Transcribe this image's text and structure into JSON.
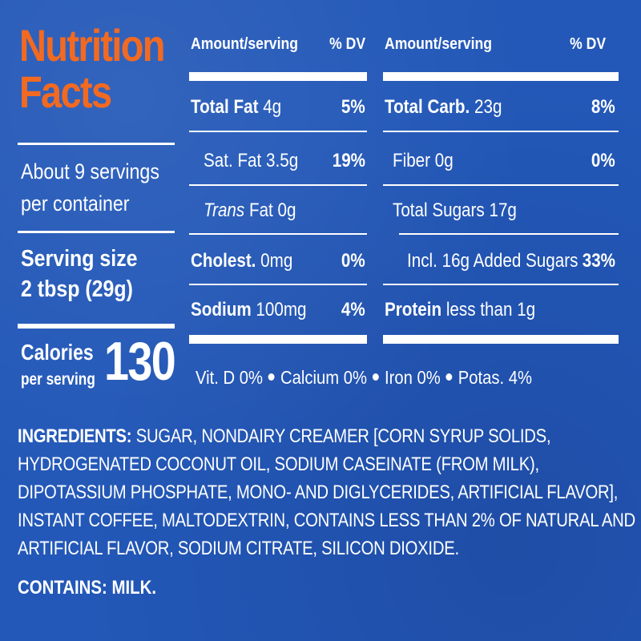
{
  "title": {
    "line1": "Nutrition",
    "line2": "Facts"
  },
  "servings": {
    "line1": "About 9 servings",
    "line2": "per container"
  },
  "serving_size": {
    "label": "Serving size",
    "value": "2 tbsp (29g)"
  },
  "calories": {
    "label": "Calories",
    "sub": "per serving",
    "value": "130"
  },
  "table": {
    "left": {
      "header_amount": "Amount/serving",
      "header_dv": "% DV",
      "total_fat": {
        "name": "Total Fat",
        "amount": "4g",
        "dv": "5%"
      },
      "sat_fat": {
        "text": "Sat. Fat 3.5g",
        "dv": "19%"
      },
      "trans_fat": {
        "italic": "Trans",
        "rest": "Fat 0g"
      },
      "cholest": {
        "name": "Cholest.",
        "amount": "0mg",
        "dv": "0%"
      },
      "sodium": {
        "name": "Sodium",
        "amount": "100mg",
        "dv": "4%"
      }
    },
    "right": {
      "header_amount": "Amount/serving",
      "header_dv": "% DV",
      "total_carb": {
        "name": "Total Carb.",
        "amount": "23g",
        "dv": "8%"
      },
      "fiber": {
        "text": "Fiber 0g",
        "dv": "0%"
      },
      "total_sugars": {
        "text": "Total Sugars 17g"
      },
      "added_sugars": {
        "text": "Incl. 16g Added Sugars",
        "dv": "33%"
      },
      "protein": {
        "name": "Protein",
        "amount": "less than 1g"
      }
    }
  },
  "vitamins": [
    "Vit. D 0%",
    "Calcium 0%",
    "Iron 0%",
    "Potas. 4%"
  ],
  "ingredients": {
    "label": "INGREDIENTS:",
    "line1": "SUGAR, NONDAIRY CREAMER [CORN SYRUP SOLIDS,",
    "line2": "HYDROGENATED COCONUT OIL, SODIUM CASEINATE (FROM MILK),",
    "line3": "DIPOTASSIUM PHOSPHATE, MONO- AND DIGLYCERIDES, ARTIFICIAL FLAVOR],",
    "line4": "INSTANT COFFEE, MALTODEXTRIN, CONTAINS LESS THAN 2% OF NATURAL AND",
    "line5": "ARTIFICIAL FLAVOR, SODIUM CITRATE, SILICON DIOXIDE."
  },
  "contains": "CONTAINS: MILK.",
  "colors": {
    "background": "#2358b8",
    "title": "#f26a21",
    "text": "#ffffff"
  }
}
